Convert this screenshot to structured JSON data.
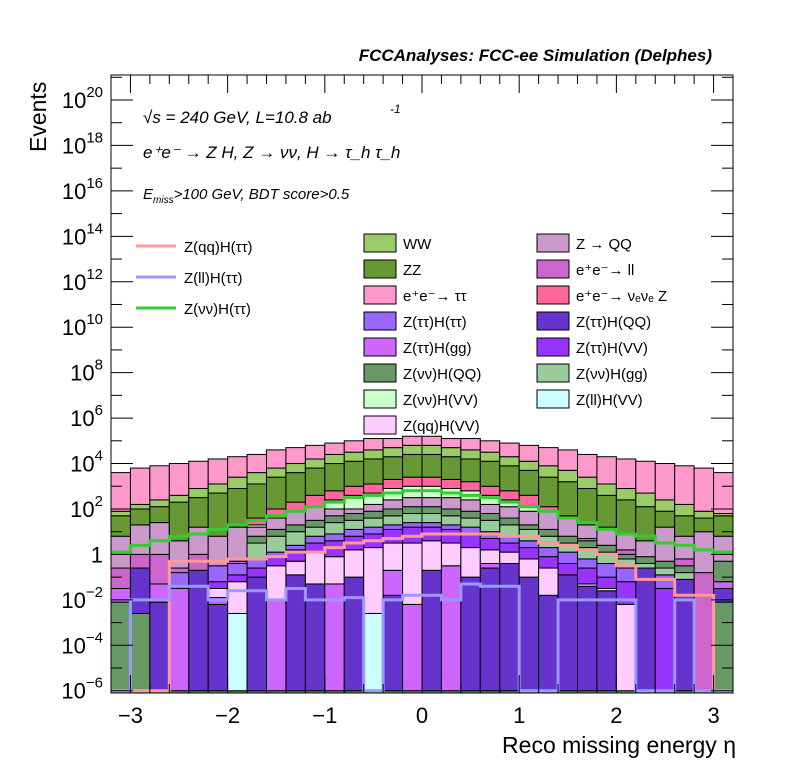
{
  "chart_data": {
    "type": "bar",
    "stacked": true,
    "log_y": true,
    "title": "FCCAnalyses: FCC-ee Simulation (Delphes)",
    "xlabel": "Reco missing energy η",
    "ylabel": "Events",
    "xlim": [
      -3.2,
      3.2
    ],
    "ylim_log10": [
      -6.1,
      21.1
    ],
    "x_ticks": [
      "−3",
      "−2",
      "−1",
      "0",
      "1",
      "2",
      "3"
    ],
    "x_tick_values": [
      -3,
      -2,
      -1,
      0,
      1,
      2,
      3
    ],
    "y_ticks": [
      {
        "base": "10",
        "exp": "20",
        "log": 20
      },
      {
        "base": "10",
        "exp": "18",
        "log": 18
      },
      {
        "base": "10",
        "exp": "16",
        "log": 16
      },
      {
        "base": "10",
        "exp": "14",
        "log": 14
      },
      {
        "base": "10",
        "exp": "12",
        "log": 12
      },
      {
        "base": "10",
        "exp": "10",
        "log": 10
      },
      {
        "base": "10",
        "exp": "8",
        "log": 8
      },
      {
        "base": "10",
        "exp": "6",
        "log": 6
      },
      {
        "base": "10",
        "exp": "4",
        "log": 4
      },
      {
        "base": "10",
        "exp": "2",
        "log": 2
      },
      {
        "base": "1",
        "exp": "",
        "log": 0
      },
      {
        "base": "10",
        "exp": "−2",
        "log": -2
      },
      {
        "base": "10",
        "exp": "−4",
        "log": -4
      },
      {
        "base": "10",
        "exp": "−6",
        "log": -6
      }
    ],
    "annotations": {
      "line1": "√s = 240 GeV, L=10.8 ab",
      "line1_sup": "-1",
      "line2": "e⁺e⁻ → Z H, Z → νν, H → τ_h τ_h",
      "line3_E": "E",
      "line3_sub": "miss",
      "line3_rest": ">100 GeV, BDT score>0.5"
    },
    "bin_edges_start": -3.2,
    "bin_width": 0.2,
    "n_bins": 32,
    "stack_tops_log10": {
      "note": "cumulative log10 top of each stacked layer per bin (bottom to top order of drawing)",
      "layers": [
        {
          "name": "Z(vv)H(QQ) base",
          "color": "#669966",
          "log_top": [
            -2.1,
            -2.6,
            -6,
            -6,
            -6,
            -6,
            -6,
            -6,
            -6,
            -6,
            -6,
            -6,
            -6,
            -6,
            -6,
            -6,
            -6,
            -6,
            -6,
            -6,
            -6,
            -6,
            -6,
            -6,
            -6,
            -6,
            -6,
            -6,
            -6,
            -6,
            -6,
            -2.1
          ]
        },
        {
          "name": "Z(ττ)H(QQ)",
          "color": "#6633cc",
          "log_top": [
            -2.1,
            -0.6,
            -2.1,
            -6,
            -0.7,
            -2.2,
            -6,
            -1.0,
            -6,
            -0.9,
            -1.3,
            -6,
            -1.0,
            -6,
            -1.8,
            -6,
            -0.7,
            -6,
            -1.0,
            -0.6,
            -0.4,
            -1.0,
            -1.8,
            -0.9,
            -1.4,
            -1.6,
            -6,
            -0.6,
            -6,
            -1.1,
            -6,
            -1.5
          ]
        },
        {
          "name": "Z(ττ)H(gg)",
          "color": "#cc66ff",
          "log_top": [
            -1.5,
            -0.6,
            -1.3,
            -1.5,
            -0.7,
            -1.9,
            -6,
            -1.9,
            -2.0,
            -0.9,
            -2.1,
            -1.3,
            -2.2,
            -6,
            -0.7,
            -2.2,
            -1.9,
            -0.5,
            -2.1,
            -0.4,
            -0.4,
            -2.1,
            -6,
            -2.0,
            -6,
            -2.1,
            -6,
            -6,
            -6,
            -6,
            -6,
            -1.2
          ]
        },
        {
          "name": "Z(ll)H(VV)",
          "color": "#ccffff",
          "log_top": [
            -6,
            -6,
            -6,
            -6,
            -6,
            -6,
            -2.6,
            -6,
            -2.6,
            -6,
            -2.0,
            -6,
            -6,
            -2.6,
            -2.1,
            -6,
            -1.2,
            -6,
            -6,
            -6,
            -6,
            -6,
            -6,
            -6,
            -6,
            -6,
            -6,
            -6,
            -6,
            -6,
            -6,
            -6
          ]
        },
        {
          "name": "Z(qq)H(VV)",
          "color": "#ffccff",
          "log_top": [
            -6,
            -6,
            -6,
            -2.0,
            -6,
            -1.5,
            -1.2,
            -1.0,
            -0.5,
            -0.3,
            0.1,
            -0.1,
            0.2,
            0.3,
            0.5,
            0.5,
            0.6,
            0.5,
            0.3,
            0.2,
            0.1,
            -0.2,
            -0.6,
            -0.9,
            -1.3,
            -1.5,
            -2.2,
            -6,
            -6,
            -6,
            -6,
            -6
          ]
        },
        {
          "name": "Z(ττ)H(VV)",
          "color": "#9933ff",
          "log_top": [
            -6,
            -6,
            -6,
            -1.4,
            -6,
            -1.2,
            -0.9,
            -0.6,
            -0.1,
            0.2,
            0.5,
            0.6,
            0.8,
            0.9,
            1.1,
            1.2,
            1.2,
            1.1,
            0.9,
            0.7,
            0.5,
            0.3,
            -0.1,
            -0.4,
            -0.6,
            -1.0,
            -1.2,
            -1.3,
            -1.5,
            -1.8,
            -6,
            -6
          ]
        },
        {
          "name": "Z(ττ)H(ττ)",
          "color": "#9966ff",
          "log_top": [
            -1.6,
            -6,
            -6,
            -0.8,
            -6,
            -0.5,
            -0.4,
            -0.2,
            0.1,
            0.4,
            0.8,
            0.9,
            1.1,
            1.2,
            1.3,
            1.4,
            1.4,
            1.3,
            1.2,
            1.0,
            0.8,
            0.6,
            0.3,
            0.1,
            -0.2,
            -0.4,
            -0.6,
            -0.7,
            -0.9,
            -1.2,
            -6,
            -1.3
          ]
        },
        {
          "name": "Z(vv)H(gg)",
          "color": "#99cc99",
          "log_top": [
            -6,
            -6,
            -6,
            -6,
            -6,
            -6,
            -6,
            0.5,
            0.8,
            1.0,
            1.2,
            1.4,
            1.5,
            1.6,
            1.7,
            1.8,
            1.8,
            1.7,
            1.6,
            1.5,
            1.3,
            1.1,
            0.8,
            0.5,
            0.3,
            0.1,
            -0.2,
            -0.4,
            -0.6,
            -0.8,
            -6,
            -6
          ]
        },
        {
          "name": "Z(vv)H(QQ)",
          "color": "#669966",
          "log_top": [
            -6,
            -6,
            -6,
            -6,
            -6,
            -6,
            -6,
            0.8,
            1.1,
            1.3,
            1.5,
            1.7,
            1.8,
            1.9,
            2.0,
            2.1,
            2.1,
            2.0,
            1.9,
            1.8,
            1.6,
            1.3,
            1.1,
            0.8,
            0.6,
            0.4,
            0.0,
            -0.1,
            -0.3,
            -0.5,
            -6,
            -0.3
          ]
        },
        {
          "name": "e+e- → ll",
          "color": "#cc66cc",
          "log_top": [
            -0.6,
            0.0,
            0.0,
            -0.6,
            0.0,
            -0.7,
            -0.3,
            0.1,
            -0.1,
            -0.3,
            0.0,
            0.1,
            1.4,
            1.5,
            1.8,
            1.9,
            1.9,
            1.9,
            1.8,
            1.7,
            1.6,
            1.3,
            1.1,
            0.8,
            0.7,
            0.3,
            0.2,
            -0.1,
            -0.3,
            -0.2,
            -0.8,
            -0.7
          ]
        },
        {
          "name": "Z → QQ",
          "color": "#cc99cc",
          "log_top": [
            0.8,
            1.3,
            1.4,
            0.6,
            1.2,
            0.8,
            1.2,
            1.2,
            1.6,
            1.9,
            2.1,
            2.0,
            2.0,
            2.2,
            2.4,
            2.5,
            2.5,
            2.5,
            2.4,
            2.2,
            2.1,
            1.9,
            1.9,
            1.6,
            1.3,
            1.2,
            0.9,
            0.6,
            1.2,
            0.8,
            1.0,
            0.8
          ]
        },
        {
          "name": "Z(vv)H(VV)",
          "color": "#ccffcc",
          "log_top": [
            -6,
            -6,
            -6,
            -6,
            -6,
            -6,
            -6,
            1.3,
            1.7,
            1.9,
            2.1,
            2.4,
            2.6,
            2.7,
            2.9,
            3.0,
            3.0,
            2.9,
            2.8,
            2.6,
            2.4,
            2.1,
            1.8,
            1.4,
            1.0,
            0.5,
            -0.1,
            -6,
            0.2,
            -6,
            -6,
            -6
          ]
        },
        {
          "name": "e+e- → νeνe Z",
          "color": "#ff6699",
          "log_top": [
            -6,
            -6,
            -6,
            0.3,
            -6,
            -6,
            1.2,
            1.6,
            2.0,
            2.3,
            2.6,
            2.8,
            3.0,
            3.1,
            3.3,
            3.4,
            3.4,
            3.3,
            3.2,
            3.0,
            2.8,
            2.6,
            2.1,
            1.7,
            1.0,
            0.6,
            0.4,
            -6,
            1.0,
            -6,
            -6,
            -6
          ]
        },
        {
          "name": "ZZ",
          "color": "#669933",
          "log_top": [
            1.7,
            2.0,
            2.1,
            2.3,
            2.5,
            2.7,
            2.9,
            3.1,
            3.4,
            3.6,
            3.8,
            4.0,
            4.1,
            4.2,
            4.3,
            4.4,
            4.4,
            4.3,
            4.2,
            4.1,
            3.9,
            3.7,
            3.4,
            3.2,
            2.9,
            2.6,
            2.4,
            2.1,
            1.9,
            1.7,
            1.6,
            1.7
          ]
        },
        {
          "name": "WW",
          "color": "#99cc66",
          "log_top": [
            1.9,
            2.2,
            2.4,
            2.6,
            2.9,
            3.1,
            3.4,
            3.6,
            3.8,
            4.0,
            4.2,
            4.4,
            4.5,
            4.6,
            4.7,
            4.8,
            4.8,
            4.7,
            4.6,
            4.5,
            4.3,
            4.1,
            3.9,
            3.7,
            3.4,
            3.1,
            2.9,
            2.7,
            2.4,
            2.2,
            1.9,
            1.8
          ]
        },
        {
          "name": "e+e- → ττ",
          "color": "#ff99cc",
          "log_top": [
            3.6,
            3.8,
            3.9,
            4.0,
            4.1,
            4.2,
            4.3,
            4.4,
            4.6,
            4.7,
            4.8,
            4.9,
            5.0,
            5.1,
            5.1,
            5.2,
            5.2,
            5.1,
            5.1,
            5.0,
            4.9,
            4.8,
            4.7,
            4.6,
            4.4,
            4.3,
            4.2,
            4.1,
            4.0,
            3.9,
            3.8,
            3.6
          ]
        }
      ]
    },
    "signal_lines": [
      {
        "name": "Z(qq)H(ττ)",
        "color": "#ff9999",
        "log_values": [
          -6,
          -6,
          -6,
          -0.3,
          -0.3,
          -0.3,
          -0.2,
          -0.2,
          -0.1,
          0.1,
          0.1,
          0.3,
          0.5,
          0.6,
          0.7,
          0.8,
          0.9,
          0.9,
          0.9,
          0.9,
          0.8,
          0.8,
          0.5,
          0.4,
          0.2,
          0.0,
          -0.5,
          -1.1,
          -1.1,
          -1.8,
          -1.8,
          -6
        ]
      },
      {
        "name": "Z(ll)H(ττ)",
        "color": "#9999ff",
        "log_values": [
          -6,
          -2.0,
          -2.0,
          -1.4,
          -1.4,
          -2.0,
          -1.6,
          -1.6,
          -2.0,
          -1.5,
          -2.0,
          -2.0,
          -1.9,
          -6,
          -2.0,
          -1.8,
          -1.8,
          -2.0,
          -1.3,
          -1.4,
          -1.4,
          -6,
          -6,
          -2.0,
          -2.0,
          -2.0,
          -2.0,
          -6,
          -6,
          -2.0,
          -6,
          -6
        ]
      },
      {
        "name": "Z(νν)H(ττ)",
        "color": "#33cc33",
        "log_values": [
          0.1,
          0.4,
          0.6,
          0.8,
          0.9,
          1.1,
          1.3,
          1.5,
          1.7,
          1.9,
          2.1,
          2.3,
          2.5,
          2.6,
          2.7,
          2.8,
          2.8,
          2.7,
          2.6,
          2.5,
          2.3,
          2.1,
          1.9,
          1.6,
          1.4,
          1.1,
          0.9,
          0.8,
          0.5,
          0.4,
          0.2,
          0.1
        ]
      }
    ],
    "legend_lines": [
      {
        "label": "Z(qq)H(ττ)",
        "color": "#ff9999"
      },
      {
        "label": "Z(ll)H(ττ)",
        "color": "#9999ff"
      },
      {
        "label": "Z(νν)H(ττ)",
        "color": "#33cc33"
      }
    ],
    "legend_col1": [
      {
        "label": "WW",
        "color": "#99cc66"
      },
      {
        "label": "ZZ",
        "color": "#669933"
      },
      {
        "label": "e⁺e⁻→ ττ",
        "color": "#ff99cc"
      },
      {
        "label": "Z(ττ)H(ττ)",
        "color": "#9966ff"
      },
      {
        "label": "Z(ττ)H(gg)",
        "color": "#cc66ff"
      },
      {
        "label": "Z(νν)H(QQ)",
        "color": "#669966"
      },
      {
        "label": "Z(νν)H(VV)",
        "color": "#ccffcc"
      },
      {
        "label": "Z(qq)H(VV)",
        "color": "#ffccff"
      }
    ],
    "legend_col2": [
      {
        "label": "Z → QQ",
        "color": "#cc99cc"
      },
      {
        "label": "e⁺e⁻→ ll",
        "color": "#cc66cc"
      },
      {
        "label": "e⁺e⁻→ νₑνₑ Z",
        "color": "#ff6699"
      },
      {
        "label": "Z(ττ)H(QQ)",
        "color": "#6633cc"
      },
      {
        "label": "Z(ττ)H(VV)",
        "color": "#9933ff"
      },
      {
        "label": "Z(νν)H(gg)",
        "color": "#99cc99"
      },
      {
        "label": "Z(ll)H(VV)",
        "color": "#ccffff"
      }
    ]
  }
}
